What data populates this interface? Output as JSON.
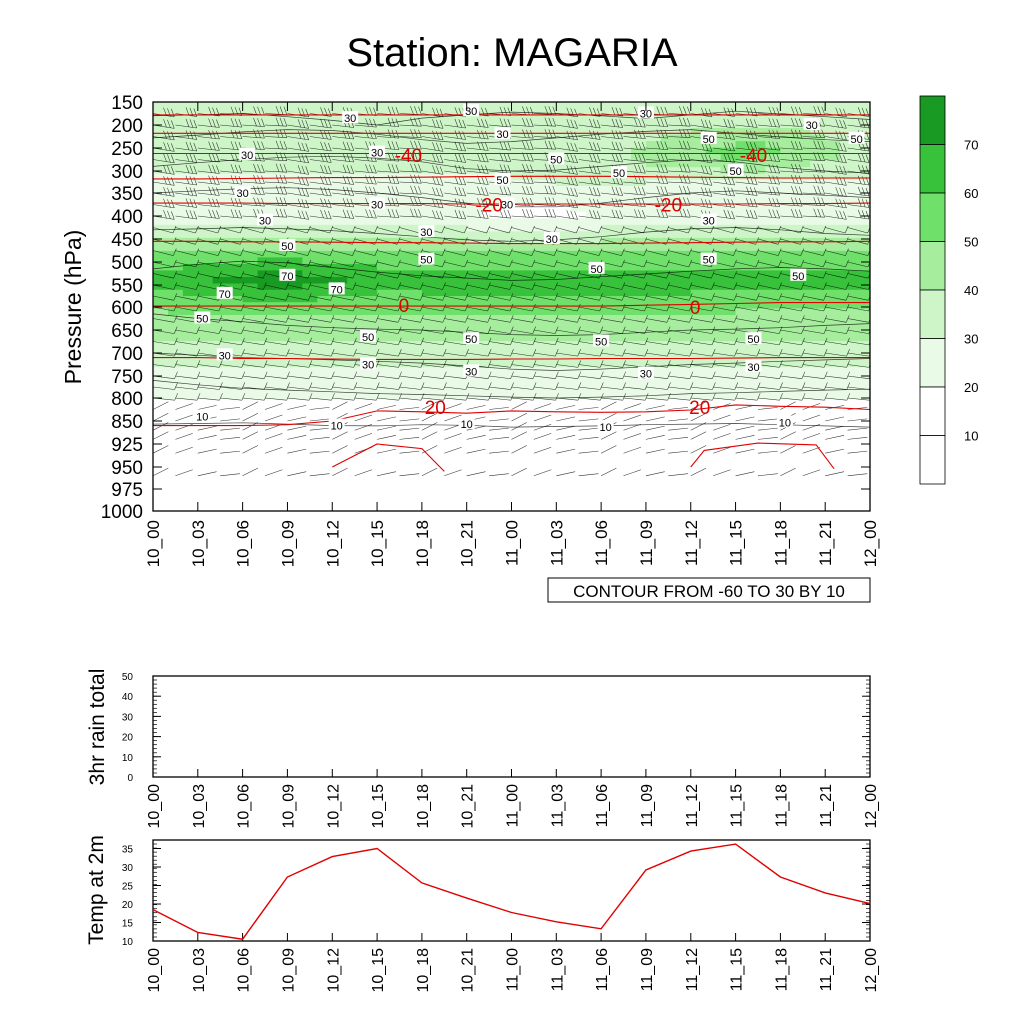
{
  "title": "Station: MAGARIA",
  "time_labels": [
    "10_00",
    "10_03",
    "10_06",
    "10_09",
    "10_12",
    "10_15",
    "10_18",
    "10_21",
    "11_00",
    "11_03",
    "11_06",
    "11_09",
    "11_12",
    "11_15",
    "11_18",
    "11_21",
    "12_00"
  ],
  "colors": {
    "shade": [
      "#ffffff",
      "#e9fbe6",
      "#cdf5c8",
      "#a6ee9e",
      "#6fe06a",
      "#38c13a",
      "#199a22"
    ],
    "temp_line": "#e00000",
    "contour": "#000000"
  },
  "chart_data": [
    {
      "id": "sounding",
      "type": "heatmap",
      "title": "Station: MAGARIA",
      "ylabel": "Pressure (hPa)",
      "xlabel": "",
      "y_ticks": [
        "150",
        "200",
        "250",
        "300",
        "350",
        "400",
        "450",
        "500",
        "550",
        "600",
        "650",
        "700",
        "750",
        "800",
        "850",
        "925",
        "950",
        "975",
        "1000"
      ],
      "colorbar": {
        "levels": [
          "10",
          "20",
          "30",
          "40",
          "50",
          "60",
          "70"
        ],
        "colors_ref": "colors.shade"
      },
      "info_label": "CONTOUR FROM -60 TO 30 BY 10",
      "temp_contour_labels": [
        {
          "text": "-40",
          "x": 5.7,
          "p": 265
        },
        {
          "text": "-40",
          "x": 13.4,
          "p": 265
        },
        {
          "text": "-20",
          "x": 7.5,
          "p": 375
        },
        {
          "text": "-20",
          "x": 11.5,
          "p": 375
        },
        {
          "text": "0",
          "x": 5.6,
          "p": 595
        },
        {
          "text": "0",
          "x": 12.1,
          "p": 600
        },
        {
          "text": "20",
          "x": 6.3,
          "p": 820
        },
        {
          "text": "20",
          "x": 12.2,
          "p": 820
        }
      ],
      "wind_speed_labels": [
        {
          "text": "30",
          "x": 4.4,
          "p": 185
        },
        {
          "text": "30",
          "x": 7.1,
          "p": 170
        },
        {
          "text": "30",
          "x": 11.0,
          "p": 175
        },
        {
          "text": "30",
          "x": 14.7,
          "p": 200
        },
        {
          "text": "30",
          "x": 7.8,
          "p": 220
        },
        {
          "text": "50",
          "x": 12.4,
          "p": 230
        },
        {
          "text": "50",
          "x": 15.7,
          "p": 230
        },
        {
          "text": "30",
          "x": 2.1,
          "p": 265
        },
        {
          "text": "30",
          "x": 5.0,
          "p": 260
        },
        {
          "text": "50",
          "x": 9.0,
          "p": 275
        },
        {
          "text": "50",
          "x": 10.4,
          "p": 305
        },
        {
          "text": "50",
          "x": 13.0,
          "p": 300
        },
        {
          "text": "50",
          "x": 7.8,
          "p": 320
        },
        {
          "text": "30",
          "x": 2.0,
          "p": 350
        },
        {
          "text": "30",
          "x": 5.0,
          "p": 375
        },
        {
          "text": "30",
          "x": 7.9,
          "p": 375
        },
        {
          "text": "30",
          "x": 2.5,
          "p": 410
        },
        {
          "text": "30",
          "x": 12.4,
          "p": 410
        },
        {
          "text": "30",
          "x": 6.1,
          "p": 435
        },
        {
          "text": "30",
          "x": 8.9,
          "p": 450
        },
        {
          "text": "50",
          "x": 3.0,
          "p": 465
        },
        {
          "text": "50",
          "x": 6.1,
          "p": 495
        },
        {
          "text": "50",
          "x": 12.4,
          "p": 495
        },
        {
          "text": "50",
          "x": 9.9,
          "p": 515
        },
        {
          "text": "50",
          "x": 14.4,
          "p": 530
        },
        {
          "text": "70",
          "x": 3.0,
          "p": 530
        },
        {
          "text": "70",
          "x": 4.1,
          "p": 560
        },
        {
          "text": "70",
          "x": 1.6,
          "p": 570
        },
        {
          "text": "50",
          "x": 1.1,
          "p": 625
        },
        {
          "text": "50",
          "x": 4.8,
          "p": 665
        },
        {
          "text": "50",
          "x": 7.1,
          "p": 670
        },
        {
          "text": "50",
          "x": 10.0,
          "p": 675
        },
        {
          "text": "50",
          "x": 13.4,
          "p": 670
        },
        {
          "text": "30",
          "x": 1.6,
          "p": 705
        },
        {
          "text": "30",
          "x": 4.8,
          "p": 725
        },
        {
          "text": "30",
          "x": 7.1,
          "p": 740
        },
        {
          "text": "30",
          "x": 11.0,
          "p": 745
        },
        {
          "text": "30",
          "x": 13.4,
          "p": 730
        },
        {
          "text": "10",
          "x": 1.1,
          "p": 840
        },
        {
          "text": "10",
          "x": 4.1,
          "p": 865
        },
        {
          "text": "10",
          "x": 7.0,
          "p": 860
        },
        {
          "text": "10",
          "x": 10.1,
          "p": 870
        },
        {
          "text": "10",
          "x": 14.1,
          "p": 855
        }
      ]
    },
    {
      "id": "rain",
      "type": "line",
      "ylabel": "3hr rain total",
      "ylim": [
        0,
        50
      ],
      "y_ticks": [
        "0",
        "10",
        "20",
        "30",
        "40",
        "50"
      ],
      "x_ticks_ref": "time_labels",
      "values": []
    },
    {
      "id": "temp2m",
      "type": "line",
      "ylabel": "Temp at 2m",
      "ylim": [
        10,
        37
      ],
      "y_ticks": [
        "10",
        "15",
        "20",
        "25",
        "30",
        "35"
      ],
      "x_ticks_ref": "time_labels",
      "values": [
        18.5,
        12.3,
        10.5,
        27.3,
        32.8,
        35.0,
        25.7,
        21.6,
        17.7,
        15.2,
        13.3,
        29.2,
        34.3,
        36.2,
        27.3,
        23.0,
        20.1
      ]
    }
  ]
}
